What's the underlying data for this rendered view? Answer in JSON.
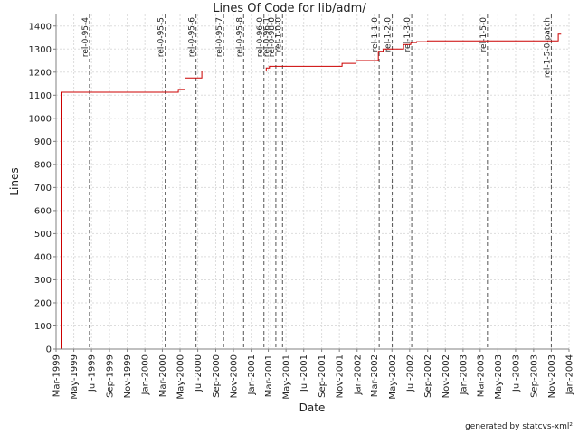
{
  "chart_data": {
    "type": "line",
    "title": "Lines Of Code for lib/adm/",
    "xlabel": "Date",
    "ylabel": "Lines",
    "ylim": [
      0,
      1450
    ],
    "xlim": [
      "1999-03-01",
      "2004-01-01"
    ],
    "grid": true,
    "footer": "generated by statcvs-xml²",
    "y_ticks": [
      0,
      100,
      200,
      300,
      400,
      500,
      600,
      700,
      800,
      900,
      1000,
      1100,
      1200,
      1300,
      1400
    ],
    "x_ticks": [
      {
        "date": "1999-03-01",
        "label": "Mar-1999"
      },
      {
        "date": "1999-05-01",
        "label": "May-1999"
      },
      {
        "date": "1999-07-01",
        "label": "Jul-1999"
      },
      {
        "date": "1999-09-01",
        "label": "Sep-1999"
      },
      {
        "date": "1999-11-01",
        "label": "Nov-1999"
      },
      {
        "date": "2000-01-01",
        "label": "Jan-2000"
      },
      {
        "date": "2000-03-01",
        "label": "Mar-2000"
      },
      {
        "date": "2000-05-01",
        "label": "May-2000"
      },
      {
        "date": "2000-07-01",
        "label": "Jul-2000"
      },
      {
        "date": "2000-09-01",
        "label": "Sep-2000"
      },
      {
        "date": "2000-11-01",
        "label": "Nov-2000"
      },
      {
        "date": "2001-01-01",
        "label": "Jan-2001"
      },
      {
        "date": "2001-03-01",
        "label": "Mar-2001"
      },
      {
        "date": "2001-05-01",
        "label": "May-2001"
      },
      {
        "date": "2001-07-01",
        "label": "Jul-2001"
      },
      {
        "date": "2001-09-01",
        "label": "Sep-2001"
      },
      {
        "date": "2001-11-01",
        "label": "Nov-2001"
      },
      {
        "date": "2002-01-01",
        "label": "Jan-2002"
      },
      {
        "date": "2002-03-01",
        "label": "Mar-2002"
      },
      {
        "date": "2002-05-01",
        "label": "May-2002"
      },
      {
        "date": "2002-07-01",
        "label": "Jul-2002"
      },
      {
        "date": "2002-09-01",
        "label": "Sep-2002"
      },
      {
        "date": "2002-11-01",
        "label": "Nov-2002"
      },
      {
        "date": "2003-01-01",
        "label": "Jan-2003"
      },
      {
        "date": "2003-03-01",
        "label": "Mar-2003"
      },
      {
        "date": "2003-05-01",
        "label": "May-2003"
      },
      {
        "date": "2003-07-01",
        "label": "Jul-2003"
      },
      {
        "date": "2003-09-01",
        "label": "Sep-2003"
      },
      {
        "date": "2003-11-01",
        "label": "Nov-2003"
      },
      {
        "date": "2004-01-01",
        "label": "Jan-2004"
      }
    ],
    "series": [
      {
        "color": "#cc0000",
        "points": [
          {
            "x": "1999-03-18",
            "y": 0
          },
          {
            "x": "1999-03-18",
            "y": 1113
          },
          {
            "x": "2000-04-25",
            "y": 1113
          },
          {
            "x": "2000-04-25",
            "y": 1125
          },
          {
            "x": "2000-05-18",
            "y": 1125
          },
          {
            "x": "2000-05-18",
            "y": 1175
          },
          {
            "x": "2000-07-15",
            "y": 1175
          },
          {
            "x": "2000-07-15",
            "y": 1205
          },
          {
            "x": "2001-02-22",
            "y": 1205
          },
          {
            "x": "2001-02-22",
            "y": 1218
          },
          {
            "x": "2001-03-05",
            "y": 1218
          },
          {
            "x": "2001-03-05",
            "y": 1225
          },
          {
            "x": "2001-11-10",
            "y": 1225
          },
          {
            "x": "2001-11-10",
            "y": 1238
          },
          {
            "x": "2001-12-28",
            "y": 1238
          },
          {
            "x": "2001-12-28",
            "y": 1250
          },
          {
            "x": "2002-03-15",
            "y": 1250
          },
          {
            "x": "2002-03-15",
            "y": 1290
          },
          {
            "x": "2002-04-01",
            "y": 1290
          },
          {
            "x": "2002-04-01",
            "y": 1300
          },
          {
            "x": "2002-06-10",
            "y": 1300
          },
          {
            "x": "2002-06-10",
            "y": 1320
          },
          {
            "x": "2002-07-05",
            "y": 1320
          },
          {
            "x": "2002-07-05",
            "y": 1328
          },
          {
            "x": "2002-07-25",
            "y": 1328
          },
          {
            "x": "2002-07-25",
            "y": 1332
          },
          {
            "x": "2002-09-01",
            "y": 1332
          },
          {
            "x": "2002-09-01",
            "y": 1335
          },
          {
            "x": "2003-11-25",
            "y": 1335
          },
          {
            "x": "2003-11-25",
            "y": 1365
          },
          {
            "x": "2003-12-05",
            "y": 1365
          }
        ]
      }
    ],
    "tags": [
      {
        "label": "rel-0-95-4",
        "date": "1999-06-24"
      },
      {
        "label": "rel-0-95-5",
        "date": "2000-03-11"
      },
      {
        "label": "rel-0-95-6",
        "date": "2000-06-25"
      },
      {
        "label": "rel-0-95-7",
        "date": "2000-09-28"
      },
      {
        "label": "rel-0-95-8",
        "date": "2000-12-06"
      },
      {
        "label": "rel-0-96-0",
        "date": "2001-02-14"
      },
      {
        "label": "rel-0-96-1",
        "date": "2001-03-10"
      },
      {
        "label": "rel-0-98-0",
        "date": "2001-03-27"
      },
      {
        "label": "rel-1-0-0",
        "date": "2001-04-19"
      },
      {
        "label": "rel-1-1-0",
        "date": "2002-03-18"
      },
      {
        "label": "rel-1-2-0",
        "date": "2002-05-02"
      },
      {
        "label": "rel-1-3-0",
        "date": "2002-07-08"
      },
      {
        "label": "rel-1-5-0",
        "date": "2003-03-26"
      },
      {
        "label": "rel-1-5-0-patch",
        "date": "2003-11-01"
      }
    ]
  }
}
